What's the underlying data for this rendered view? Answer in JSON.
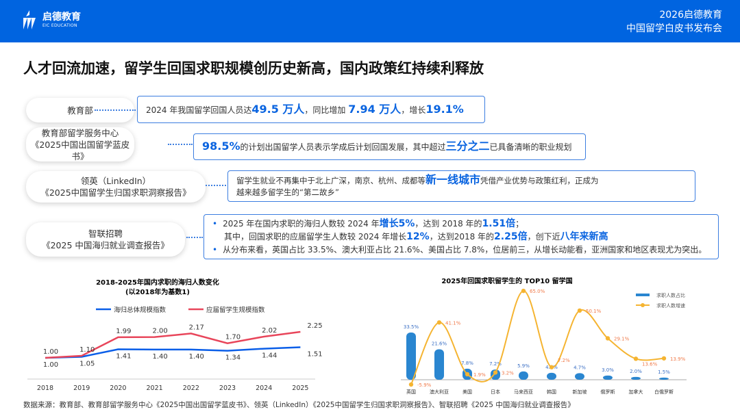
{
  "header": {
    "logo_cn": "启德教育",
    "logo_en": "EIC EDUCATION",
    "event_line1": "2026启德教育",
    "event_line2": "中国留学白皮书发布会",
    "bg_color": "#0064e0"
  },
  "title": "人才回流加速，留学生回国求职规模创历史新高，国内政策红持续利释放",
  "sources": [
    {
      "line1": "教育部",
      "line2": ""
    },
    {
      "line1": "教育部留学服务中心",
      "line2": "《2025中国出国留学蓝皮书》"
    },
    {
      "line1": "领英（LinkedIn）",
      "line2": "《2025中国留学生归国求职洞察报告》"
    },
    {
      "line1": "智联招聘",
      "line2": "《2025 中国海归就业调查报告》"
    }
  ],
  "facts": {
    "f1": {
      "a": "2024 年我国留学回国人员达",
      "b": "49.5 万人",
      "c": "，同比增加 ",
      "d": "7.94 万人",
      "e": "，增长",
      "f": "19.1%"
    },
    "f2": {
      "a": "98.5%",
      "b": "的计划出国留学人员表示学成后计划回国发展，其中超过",
      "c": "三分之二",
      "d": "已具备清晰的职业规划"
    },
    "f3": {
      "a": "留学生就业不再集中于北上广深，南京、杭州、成都等",
      "b": "新一线城市",
      "c": "凭借产业优势与政策红利，正成为",
      "d": "越来越多留学生的“第二故乡”"
    },
    "f4": {
      "a": "2025 年在国内求职的海归人数较 2024 年 ",
      "b": "增长5%",
      "c": "，达到 2018 年的 ",
      "d": "1.51倍",
      "e": "；",
      "g": "其中，回国求职的应届留学生人数较 2024 年增长 ",
      "h": "12%",
      "i": "，达到2018 年的 ",
      "j": "2.25倍",
      "k": "，创下近",
      "l": "八年来新高",
      "m": "从分布来看，英国占比 33.5%、澳大利亚占比 21.6%、美国占比 7.8%，位居前三，从增长动能看，亚洲国家和地区表现尤为突出。"
    }
  },
  "chart_data": [
    {
      "type": "line",
      "title": "2018-2025年国内求职的海归人数变化",
      "subtitle": "(以2018年为基数1)",
      "categories": [
        "2018",
        "2019",
        "2020",
        "2021",
        "2022",
        "2023",
        "2024",
        "2025"
      ],
      "series": [
        {
          "name": "海归总体规模指数",
          "color": "#0a5ee8",
          "values": [
            1.0,
            1.05,
            1.41,
            1.4,
            1.4,
            1.34,
            1.44,
            1.51
          ]
        },
        {
          "name": "应届留学生规模指数",
          "color": "#e8455a",
          "values": [
            1.0,
            1.1,
            1.99,
            2.0,
            2.17,
            1.7,
            2.02,
            2.25
          ]
        }
      ],
      "legend": "top"
    },
    {
      "type": "bar+line",
      "title": "2025年回国求职留学生的 TOP10 留学国",
      "categories": [
        "英国",
        "澳大利亚",
        "美国",
        "日本",
        "马来西亚",
        "韩国",
        "新加坡",
        "俄罗斯",
        "加拿大",
        "白俄罗斯"
      ],
      "series": [
        {
          "name": "求职人数占比",
          "type": "bar",
          "color": "#2a86d0",
          "values": [
            33.5,
            21.6,
            7.8,
            7.2,
            5.9,
            4.9,
            4.7,
            3.0,
            2.0,
            1.5
          ],
          "unit": "%"
        },
        {
          "name": "求职人数增速",
          "type": "line",
          "color": "#f5b431",
          "label_color": "#f07a4a",
          "values": [
            -5.9,
            41.1,
            1.9,
            3.2,
            65.0,
            7.2,
            50.1,
            29.1,
            13.6,
            13.9
          ],
          "unit": "%"
        }
      ],
      "legend": "top-right"
    }
  ],
  "footer": "数据来源：教育部、教育部留学服务中心《2025中国出国留学蓝皮书》、领英（LinkedIn）《2025中国留学生归国求职洞察报告》、智联招聘《2025 中国海归就业调查报告》"
}
